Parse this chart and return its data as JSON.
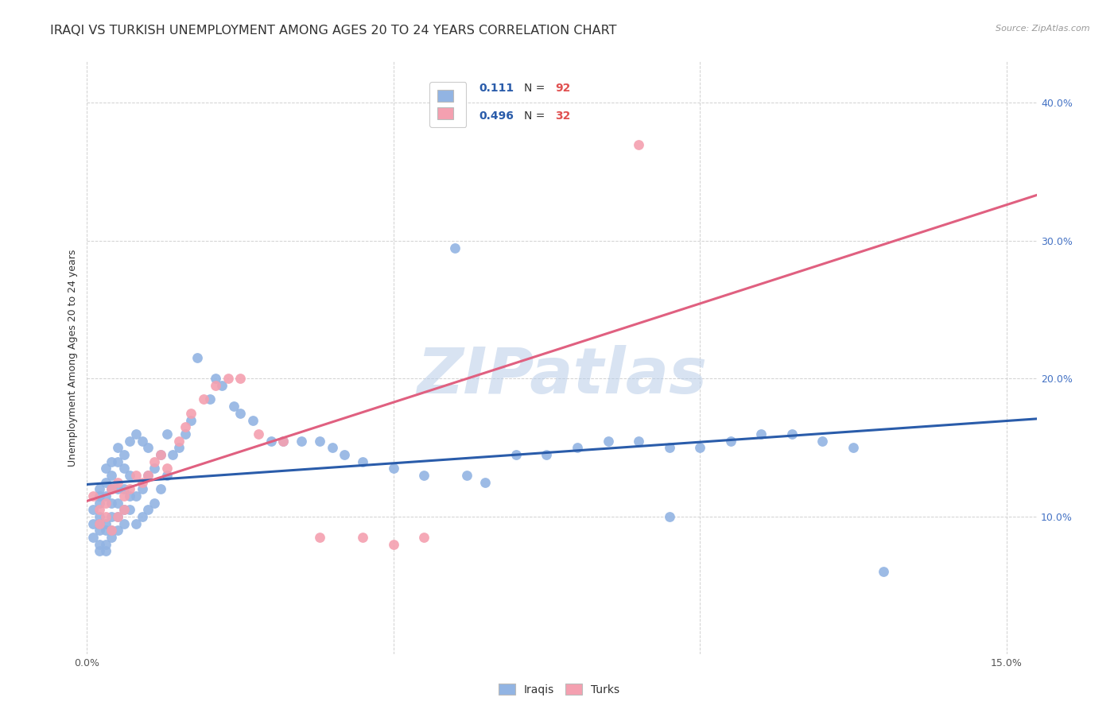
{
  "title": "IRAQI VS TURKISH UNEMPLOYMENT AMONG AGES 20 TO 24 YEARS CORRELATION CHART",
  "source": "Source: ZipAtlas.com",
  "ylabel": "Unemployment Among Ages 20 to 24 years",
  "xlim": [
    0.0,
    0.155
  ],
  "ylim": [
    0.0,
    0.43
  ],
  "iraqi_color": "#92b4e3",
  "turk_color": "#f4a0b0",
  "iraqi_line_color": "#2a5caa",
  "turk_line_color": "#e06080",
  "background_color": "#ffffff",
  "grid_color": "#cccccc",
  "watermark_color": "#b8cde8",
  "legend_R_color": "#2a5caa",
  "legend_N_color": "#e05050",
  "title_fontsize": 11.5,
  "label_fontsize": 9,
  "tick_fontsize": 9,
  "legend_fontsize": 10,
  "iraqi_x": [
    0.001,
    0.001,
    0.001,
    0.002,
    0.002,
    0.002,
    0.002,
    0.002,
    0.002,
    0.002,
    0.002,
    0.003,
    0.003,
    0.003,
    0.003,
    0.003,
    0.003,
    0.003,
    0.004,
    0.004,
    0.004,
    0.004,
    0.004,
    0.004,
    0.004,
    0.005,
    0.005,
    0.005,
    0.005,
    0.005,
    0.005,
    0.006,
    0.006,
    0.006,
    0.006,
    0.006,
    0.007,
    0.007,
    0.007,
    0.007,
    0.008,
    0.008,
    0.008,
    0.009,
    0.009,
    0.009,
    0.01,
    0.01,
    0.01,
    0.011,
    0.011,
    0.012,
    0.012,
    0.013,
    0.013,
    0.014,
    0.015,
    0.016,
    0.017,
    0.018,
    0.02,
    0.021,
    0.022,
    0.024,
    0.025,
    0.027,
    0.03,
    0.032,
    0.035,
    0.038,
    0.04,
    0.042,
    0.045,
    0.05,
    0.055,
    0.062,
    0.065,
    0.07,
    0.075,
    0.08,
    0.085,
    0.09,
    0.095,
    0.1,
    0.105,
    0.11,
    0.115,
    0.12,
    0.125,
    0.095,
    0.06,
    0.13
  ],
  "iraqi_y": [
    0.085,
    0.095,
    0.105,
    0.075,
    0.08,
    0.09,
    0.095,
    0.1,
    0.11,
    0.115,
    0.12,
    0.075,
    0.08,
    0.09,
    0.095,
    0.115,
    0.125,
    0.135,
    0.085,
    0.09,
    0.1,
    0.11,
    0.12,
    0.13,
    0.14,
    0.09,
    0.1,
    0.11,
    0.12,
    0.14,
    0.15,
    0.095,
    0.105,
    0.12,
    0.135,
    0.145,
    0.105,
    0.115,
    0.13,
    0.155,
    0.095,
    0.115,
    0.16,
    0.1,
    0.12,
    0.155,
    0.105,
    0.13,
    0.15,
    0.11,
    0.135,
    0.12,
    0.145,
    0.13,
    0.16,
    0.145,
    0.15,
    0.16,
    0.17,
    0.215,
    0.185,
    0.2,
    0.195,
    0.18,
    0.175,
    0.17,
    0.155,
    0.155,
    0.155,
    0.155,
    0.15,
    0.145,
    0.14,
    0.135,
    0.13,
    0.13,
    0.125,
    0.145,
    0.145,
    0.15,
    0.155,
    0.155,
    0.15,
    0.15,
    0.155,
    0.16,
    0.16,
    0.155,
    0.15,
    0.1,
    0.295,
    0.06
  ],
  "turk_x": [
    0.001,
    0.002,
    0.002,
    0.003,
    0.003,
    0.004,
    0.004,
    0.005,
    0.005,
    0.006,
    0.006,
    0.007,
    0.008,
    0.009,
    0.01,
    0.011,
    0.012,
    0.013,
    0.015,
    0.016,
    0.017,
    0.019,
    0.021,
    0.023,
    0.025,
    0.028,
    0.032,
    0.038,
    0.045,
    0.05,
    0.09,
    0.055
  ],
  "turk_y": [
    0.115,
    0.095,
    0.105,
    0.1,
    0.11,
    0.09,
    0.12,
    0.1,
    0.125,
    0.105,
    0.115,
    0.12,
    0.13,
    0.125,
    0.13,
    0.14,
    0.145,
    0.135,
    0.155,
    0.165,
    0.175,
    0.185,
    0.195,
    0.2,
    0.2,
    0.16,
    0.155,
    0.085,
    0.085,
    0.08,
    0.37,
    0.085
  ]
}
